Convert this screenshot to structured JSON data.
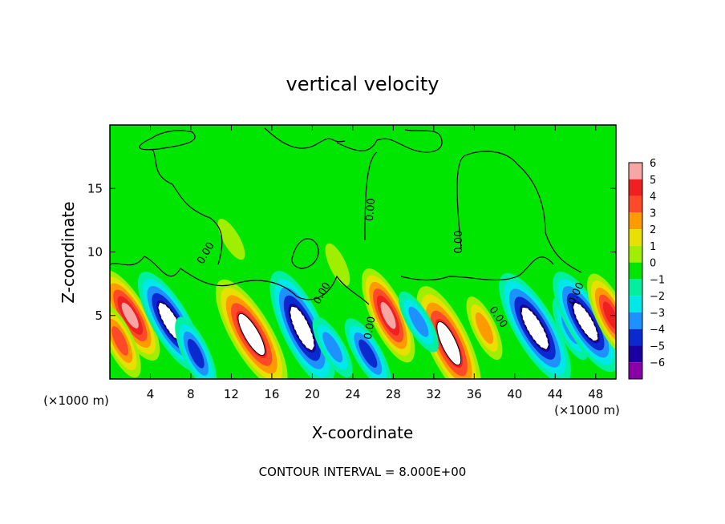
{
  "chart_data": {
    "type": "heatmap",
    "title": "vertical velocity",
    "xlabel": "X-coordinate",
    "ylabel": "Z-coordinate",
    "x_unit_left": "(×1000 m)",
    "x_unit_right": "(×1000 m)",
    "footer": "CONTOUR INTERVAL = 8.000E+00",
    "xlim": [
      0,
      50
    ],
    "ylim": [
      0,
      20
    ],
    "x_ticks": [
      "4",
      "8",
      "12",
      "16",
      "20",
      "24",
      "28",
      "32",
      "36",
      "40",
      "44",
      "48"
    ],
    "y_ticks": [
      "5",
      "10",
      "15"
    ],
    "x_tick_values": [
      4,
      8,
      12,
      16,
      20,
      24,
      28,
      32,
      36,
      40,
      44,
      48
    ],
    "y_tick_values": [
      5,
      10,
      15
    ],
    "colorbar": {
      "labels": [
        "6",
        "5",
        "4",
        "3",
        "2",
        "1",
        "0",
        "−1",
        "−2",
        "−3",
        "−4",
        "−5",
        "−6"
      ],
      "values": [
        6,
        5,
        4,
        3,
        2,
        1,
        0,
        -1,
        -2,
        -3,
        -4,
        -5,
        -6
      ],
      "colors": [
        "#f7a6a6",
        "#f02020",
        "#ff4a2a",
        "#ff9a00",
        "#e8e000",
        "#a0ee00",
        "#00e600",
        "#00f0a0",
        "#00e8e8",
        "#1e90ff",
        "#0a2ad0",
        "#1a00a0",
        "#8800a8"
      ]
    },
    "contour_labels": [
      "0.00",
      "0.00",
      "0.00",
      "0.00",
      "0.00",
      "0.00",
      "0.00"
    ],
    "cells": [
      {
        "x": 2.0,
        "z": 5.0,
        "w": 6.0
      },
      {
        "x": 1.0,
        "z": 3.0,
        "w": 4.0
      },
      {
        "x": 6.0,
        "z": 4.5,
        "w": -7.0
      },
      {
        "x": 8.5,
        "z": 2.0,
        "w": -4.0
      },
      {
        "x": 14.0,
        "z": 3.5,
        "w": 8.0
      },
      {
        "x": 19.0,
        "z": 4.0,
        "w": -8.0
      },
      {
        "x": 22.0,
        "z": 2.5,
        "w": -3.0
      },
      {
        "x": 27.5,
        "z": 5.0,
        "w": 6.0
      },
      {
        "x": 25.5,
        "z": 2.0,
        "w": -4.0
      },
      {
        "x": 33.5,
        "z": 2.8,
        "w": 8.0
      },
      {
        "x": 30.5,
        "z": 4.5,
        "w": -3.0
      },
      {
        "x": 37.0,
        "z": 4.0,
        "w": 3.0
      },
      {
        "x": 42.0,
        "z": 4.0,
        "w": -8.0
      },
      {
        "x": 45.5,
        "z": 4.0,
        "w": -3.0
      },
      {
        "x": 47.0,
        "z": 4.5,
        "w": -7.0
      },
      {
        "x": 49.5,
        "z": 5.0,
        "w": 5.0
      },
      {
        "x": 12.0,
        "z": 11.0,
        "w": 1.0
      },
      {
        "x": 22.5,
        "z": 9.0,
        "w": 1.0
      }
    ]
  }
}
